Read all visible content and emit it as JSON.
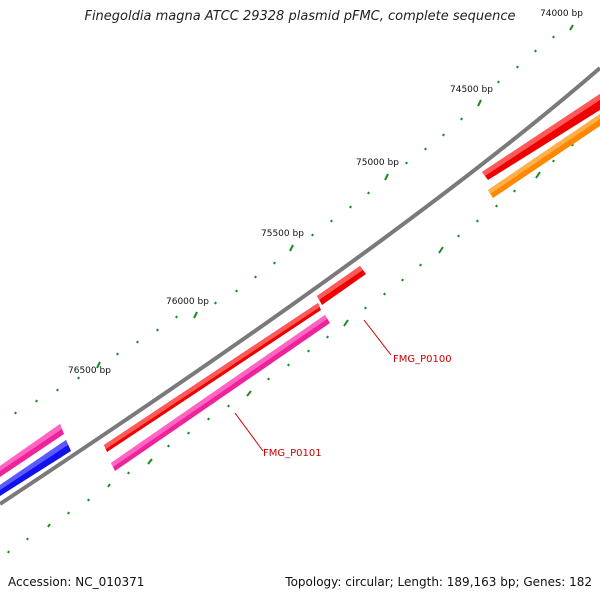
{
  "title": "Finegoldia magna ATCC 29328 plasmid pFMC, complete sequence",
  "accession": "Accession: NC_010371",
  "summary": "Topology: circular; Length: 189,163 bp; Genes: 182",
  "ticks": [
    {
      "label": "74000 bp"
    },
    {
      "label": "74500 bp"
    },
    {
      "label": "75000 bp"
    },
    {
      "label": "75500 bp"
    },
    {
      "label": "76000 bp"
    },
    {
      "label": "76500 bp"
    }
  ],
  "gene_labels": [
    {
      "label": "FMG_P0100"
    },
    {
      "label": "FMG_P0101"
    }
  ],
  "colors": {
    "backbone": "#808080",
    "tick": "#1a8a1a",
    "red": "#ee0000",
    "magenta": "#ee2299",
    "orange": "#ff9900",
    "blue": "#1111ee",
    "label_red": "#cc0000"
  }
}
